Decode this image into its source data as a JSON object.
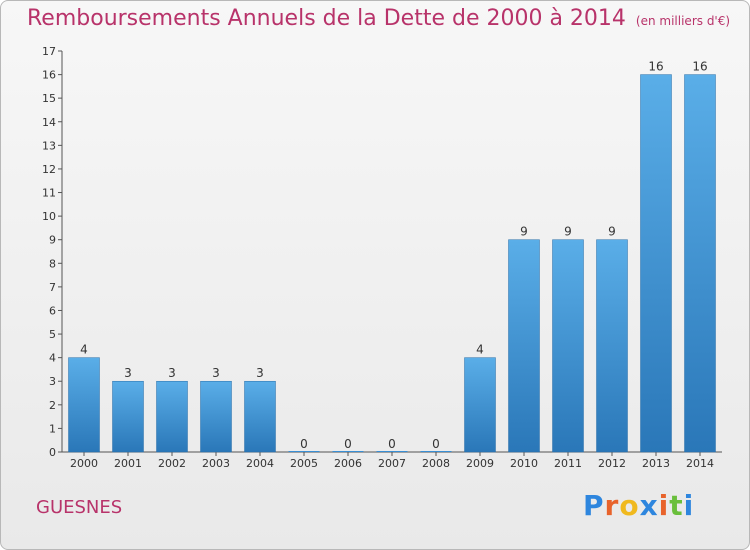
{
  "header": {
    "title": "Remboursements Annuels de la Dette de 2000 à 2014",
    "subtitle": "(en milliers d'€)"
  },
  "footer": {
    "commune": "GUESNES",
    "logo_text": "Proxiti",
    "logo_colors": [
      "#2e86de",
      "#e8632b",
      "#f0b91e",
      "#2e86de",
      "#e8632b",
      "#6abf3c",
      "#2e86de"
    ]
  },
  "chart_data": {
    "type": "bar",
    "categories": [
      "2000",
      "2001",
      "2002",
      "2003",
      "2004",
      "2005",
      "2006",
      "2007",
      "2008",
      "2009",
      "2010",
      "2011",
      "2012",
      "2013",
      "2014"
    ],
    "values": [
      4,
      3,
      3,
      3,
      3,
      0,
      0,
      0,
      0,
      4,
      9,
      9,
      9,
      16,
      16
    ],
    "data_labels": [
      "4",
      "3",
      "3",
      "3",
      "3",
      "0",
      "0",
      "0",
      "0",
      "4",
      "9",
      "9",
      "9",
      "16",
      "16"
    ],
    "ylim": [
      0,
      17
    ],
    "yticks": [
      "0",
      "1",
      "2",
      "3",
      "4",
      "5",
      "6",
      "7",
      "8",
      "9",
      "10",
      "11",
      "12",
      "13",
      "14",
      "15",
      "16",
      "17"
    ],
    "bar_color": "#3a8fd4",
    "grid": false
  }
}
